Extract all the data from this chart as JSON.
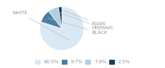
{
  "labels": [
    "WHITE",
    "BLACK",
    "HISPANIC",
    "ASIAN"
  ],
  "values": [
    80.0,
    9.7,
    7.8,
    2.5
  ],
  "colors": [
    "#d9e8f5",
    "#4a7fa5",
    "#b0cfe0",
    "#1a3d5c"
  ],
  "legend_labels": [
    "80.0%",
    "9.7%",
    "7.8%",
    "2.5%"
  ],
  "legend_colors": [
    "#d9e8f5",
    "#4a7fa5",
    "#b0cfe0",
    "#1a3d5c"
  ],
  "label_fontsize": 5.0,
  "legend_fontsize": 5.0,
  "startangle": 90,
  "text_color": "#999999"
}
